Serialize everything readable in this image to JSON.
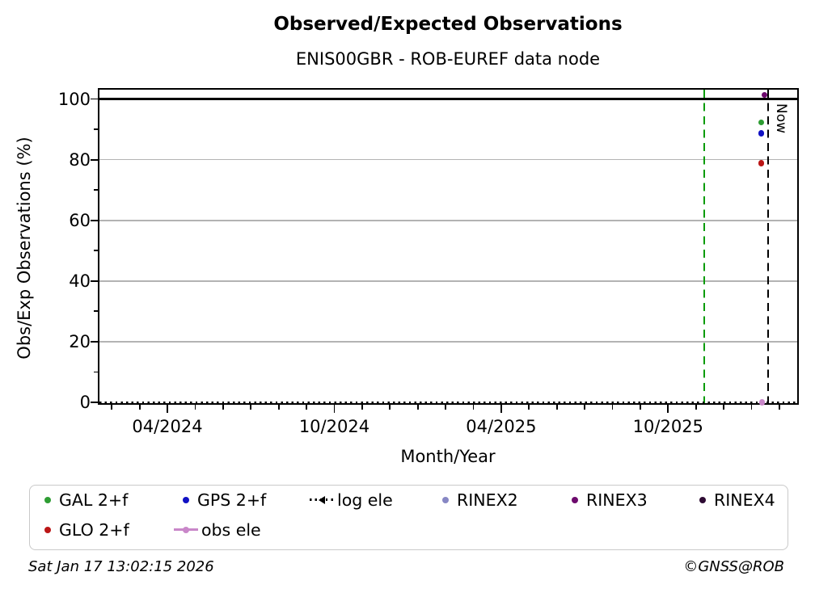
{
  "header": {
    "title": "Observed/Expected Observations",
    "subtitle": "ENIS00GBR - ROB-EUREF data node"
  },
  "chart_data": {
    "type": "scatter",
    "title": "Observed/Expected Observations",
    "subtitle": "ENIS00GBR - ROB-EUREF data node",
    "xlabel": "Month/Year",
    "ylabel": "Obs/Exp Observations (%)",
    "x_axis": {
      "unit": "months_since_2024-01-01",
      "range": [
        0.5,
        25.7
      ],
      "ticks": {
        "values": [
          3,
          9,
          15,
          21
        ],
        "labels": [
          "04/2024",
          "10/2024",
          "04/2025",
          "10/2025"
        ],
        "minor_step_months": 1
      }
    },
    "y_axis": {
      "range": [
        -0.8,
        103.6
      ],
      "ticks": {
        "values": [
          0,
          20,
          40,
          60,
          80,
          100
        ],
        "labels": [
          "0",
          "20",
          "40",
          "60",
          "80",
          "100"
        ],
        "minor": [
          10,
          30,
          50,
          70,
          90
        ]
      },
      "grid_color": "#b3b3b3",
      "solid_black_line_at": 100
    },
    "grid": "horizontal-only",
    "vlines": [
      {
        "x": 22.3,
        "color": "#0b9b0b",
        "style": "dashed",
        "label": ""
      },
      {
        "x": 24.6,
        "color": "#000000",
        "style": "dashed",
        "label": "Now"
      }
    ],
    "series": [
      {
        "name": "GAL 2+f",
        "color": "#2e9d33",
        "marker": "dot",
        "points": [
          {
            "x": 24.35,
            "y": 92.3
          }
        ]
      },
      {
        "name": "GPS 2+f",
        "color": "#1111c4",
        "marker": "dot",
        "points": [
          {
            "x": 24.35,
            "y": 88.7
          }
        ]
      },
      {
        "name": "GLO 2+f",
        "color": "#bb1616",
        "marker": "dot",
        "points": [
          {
            "x": 24.35,
            "y": 78.9
          }
        ]
      },
      {
        "name": "log ele",
        "color": "#000000",
        "marker": "dotted-line",
        "line_y": 0,
        "points": []
      },
      {
        "name": "obs ele",
        "color": "#c987c9",
        "marker": "line-dot",
        "points": [
          {
            "x": 24.38,
            "y": 0
          }
        ]
      },
      {
        "name": "RINEX2",
        "color": "#8787c4",
        "marker": "dot",
        "points": []
      },
      {
        "name": "RINEX3",
        "color": "#6d0a6d",
        "marker": "dot",
        "points": [
          {
            "x": 24.46,
            "y": 101.3
          }
        ]
      },
      {
        "name": "RINEX4",
        "color": "#2e0b33",
        "marker": "dot",
        "points": []
      }
    ]
  },
  "legend": {
    "entries": [
      {
        "label": "GAL 2+f",
        "marker": "dot",
        "color": "#2e9d33"
      },
      {
        "label": "GPS 2+f",
        "marker": "dot",
        "color": "#1111c4"
      },
      {
        "label": "log ele",
        "marker": "dotted-line",
        "color": "#000000"
      },
      {
        "label": "RINEX2",
        "marker": "dot",
        "color": "#8787c4"
      },
      {
        "label": "RINEX3",
        "marker": "dot",
        "color": "#6d0a6d"
      },
      {
        "label": "RINEX4",
        "marker": "dot",
        "color": "#2e0b33"
      },
      {
        "label": "GLO 2+f",
        "marker": "dot",
        "color": "#bb1616"
      },
      {
        "label": "obs ele",
        "marker": "line-dot",
        "color": "#c987c9"
      }
    ]
  },
  "footer": {
    "left": "Sat Jan 17 13:02:15 2026",
    "right": "©GNSS@ROB"
  }
}
